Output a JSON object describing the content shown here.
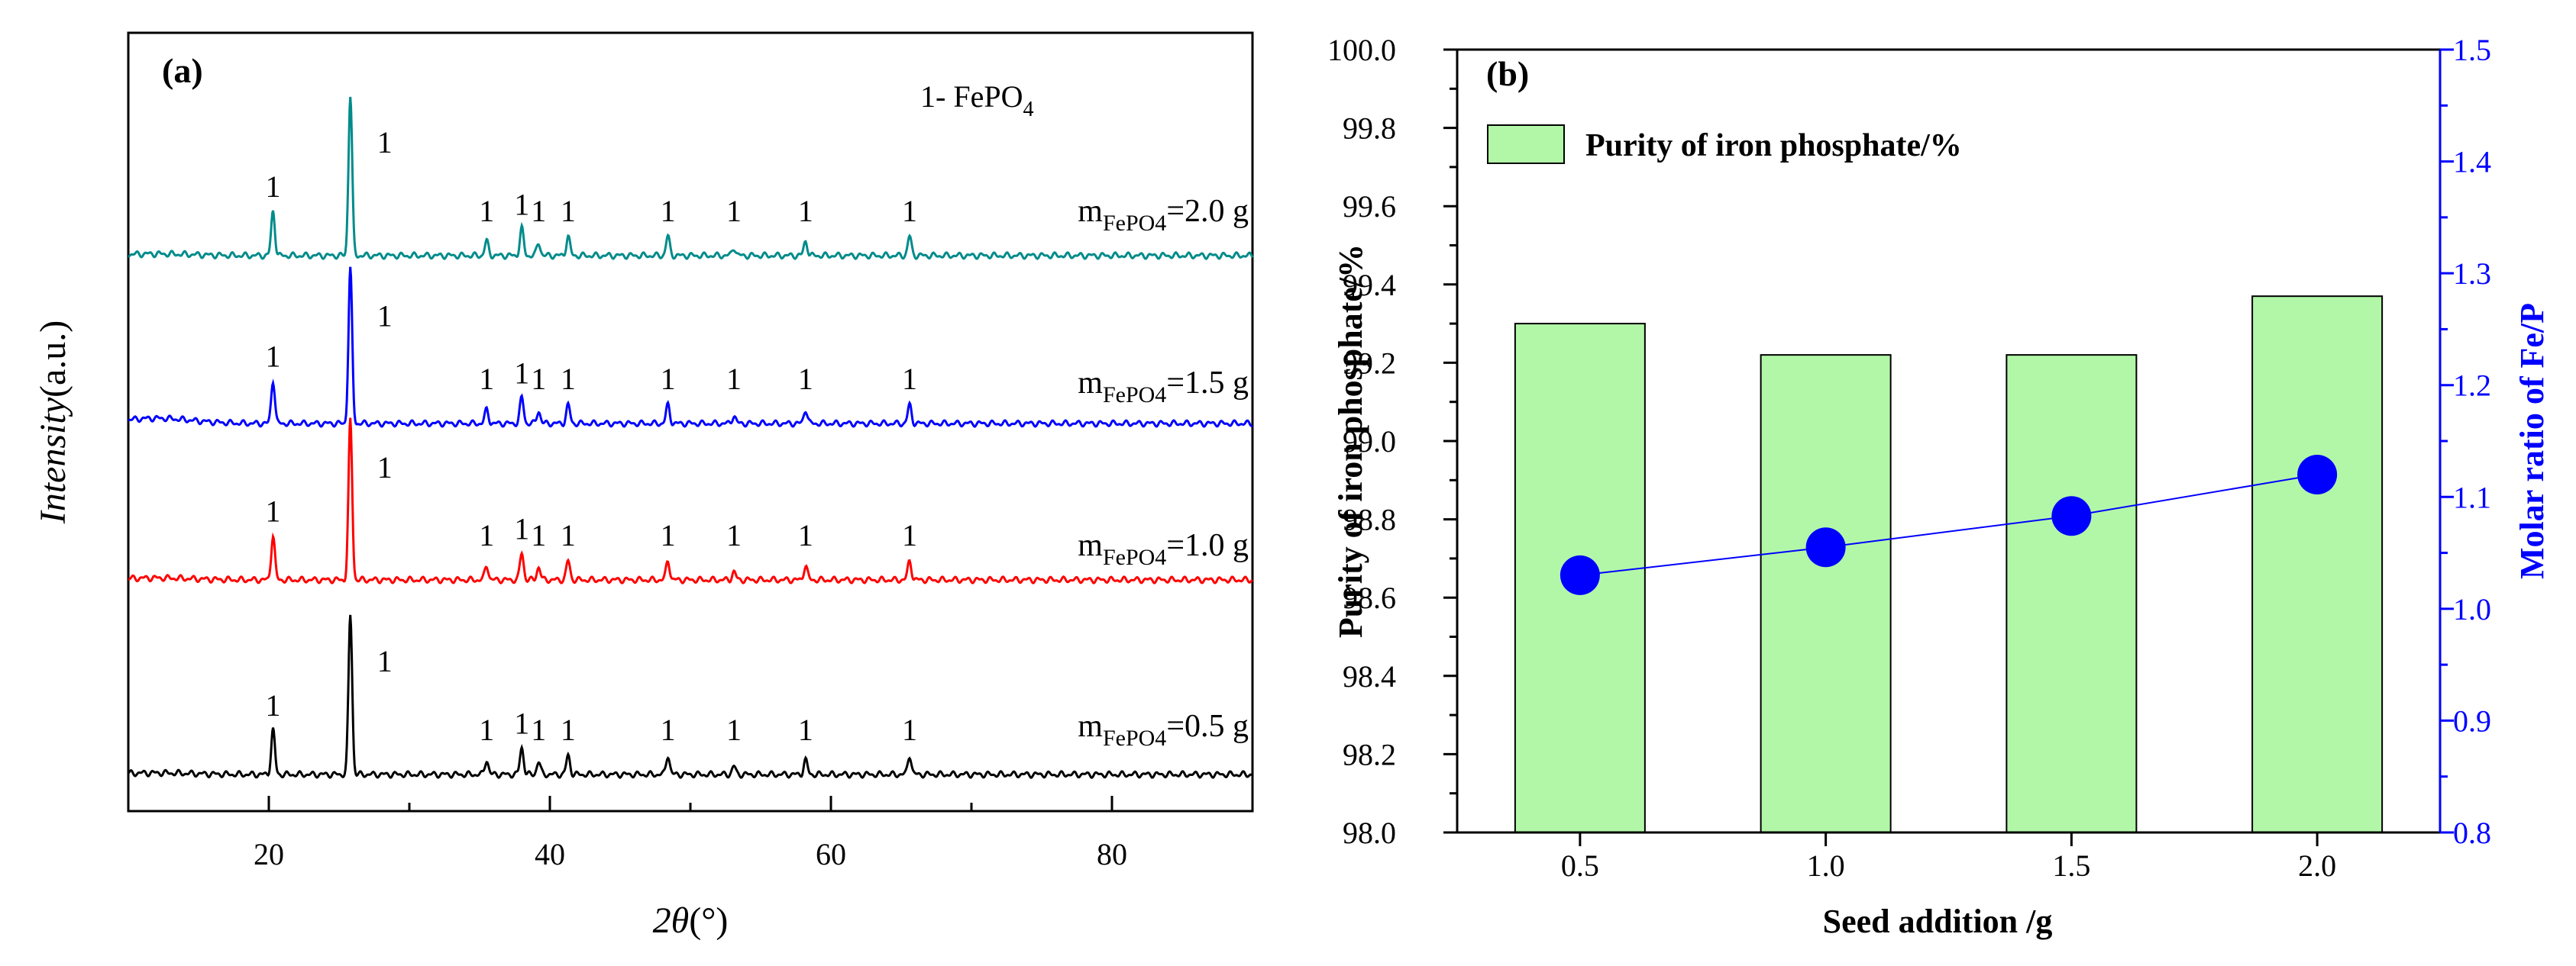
{
  "chart_data": [
    {
      "panel": "(a)",
      "type": "line",
      "title": "",
      "xlabel_symbol": "2θ",
      "xlabel_unit": "(°)",
      "ylabel_italic": "Intensity",
      "ylabel_unit": "(a.u.)",
      "xlim": [
        10,
        90
      ],
      "x_ticks": [
        20,
        40,
        60,
        80
      ],
      "y_ticks_shown": false,
      "phase_label": "1- FePO",
      "phase_label_sub": "4",
      "peak_label": "1",
      "peak_positions": [
        20.3,
        25.8,
        35.5,
        38.0,
        39.2,
        41.3,
        48.4,
        53.1,
        58.2,
        65.6
      ],
      "peak_rel_intensity": [
        0.28,
        1.0,
        0.09,
        0.17,
        0.08,
        0.12,
        0.12,
        0.05,
        0.09,
        0.12
      ],
      "series": [
        {
          "name": "m",
          "subscript": "FePO4",
          "value_text": "=2.0 g",
          "color": "#008b8b",
          "peak_scale": 1.0,
          "hump": 0.09
        },
        {
          "name": "m",
          "subscript": "FePO4",
          "value_text": "=1.5 g",
          "color": "#0000ff",
          "peak_scale": 0.9,
          "hump": 0.28
        },
        {
          "name": "m",
          "subscript": "FePO4",
          "value_text": "=1.0 g",
          "color": "#ff0000",
          "peak_scale": 0.93,
          "hump": 0.1
        },
        {
          "name": "m",
          "subscript": "FePO4",
          "value_text": "=0.5 g",
          "color": "#000000",
          "peak_scale": 1.0,
          "hump": 0.08
        }
      ]
    },
    {
      "panel": "(b)",
      "type": "bar",
      "title": "",
      "categories": [
        "0.5",
        "1.0",
        "1.5",
        "2.0"
      ],
      "xlabel": "Seed addition /g",
      "ylabel": "Purity of iron phosphate/%",
      "ylim": [
        98.0,
        100.0
      ],
      "y_ticks": [
        "98.0",
        "98.2",
        "98.4",
        "98.6",
        "98.8",
        "99.0",
        "99.2",
        "99.4",
        "99.6",
        "99.8",
        "100.0"
      ],
      "y2label": "Molar ratio of Fe/P",
      "y2lim": [
        0.8,
        1.5
      ],
      "y2_ticks": [
        "0.8",
        "0.9",
        "1.0",
        "1.1",
        "1.2",
        "1.3",
        "1.4",
        "1.5"
      ],
      "series": [
        {
          "name": "Purity of iron phosphate/%",
          "type": "bar",
          "axis": "left",
          "values": [
            99.3,
            99.22,
            99.22,
            99.37
          ],
          "color": "#b2f7a8"
        },
        {
          "name": "Molar ratio of Fe/P",
          "type": "line",
          "axis": "right",
          "values": [
            1.03,
            1.055,
            1.083,
            1.12
          ],
          "color": "#0000ff"
        }
      ],
      "legend": {
        "label": "Purity of iron phosphate/%",
        "placement": "top-left"
      },
      "grid": false
    }
  ]
}
